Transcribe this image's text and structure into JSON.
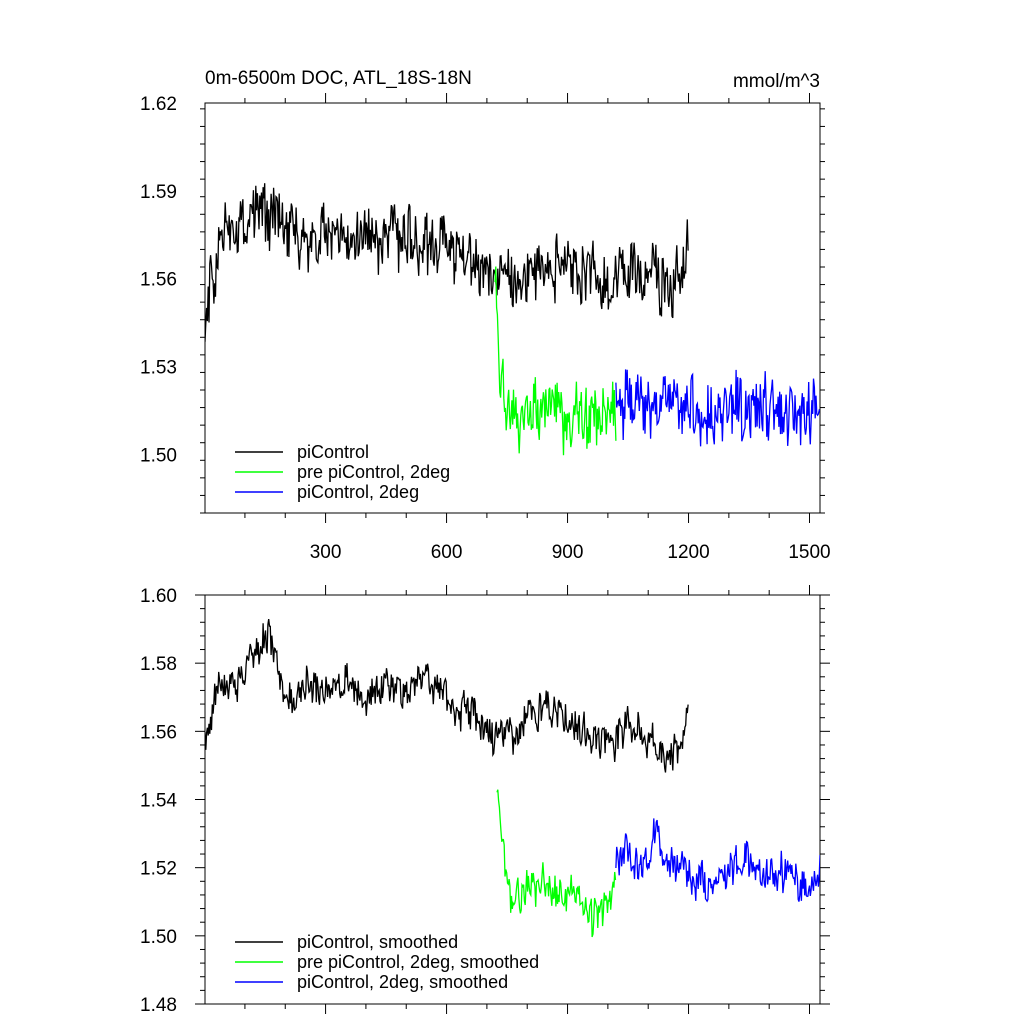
{
  "figure": {
    "title_left": "0m-6500m DOC, ATL_18S-18N",
    "title_right": "mmol/m^3"
  },
  "chart_data": [
    {
      "type": "line",
      "title": "0m-6500m DOC, ATL_18S-18N",
      "units": "mmol/m^3",
      "xlim": [
        1,
        1526
      ],
      "ylim": [
        1.48,
        1.62
      ],
      "x_ticks": [
        300,
        600,
        900,
        1200,
        1500
      ],
      "x_tick_labels": [
        "300",
        "600",
        "900",
        "1200",
        "1500"
      ],
      "y_ticks": [
        1.5,
        1.53,
        1.56,
        1.59,
        1.62
      ],
      "y_tick_labels": [
        "1.50",
        "1.53",
        "1.56",
        "1.59",
        "1.62"
      ],
      "grid": false,
      "legend_position": "bottom-left",
      "series": [
        {
          "name": "piControl",
          "color": "#000000",
          "x": [
            1,
            50,
            100,
            150,
            200,
            250,
            300,
            350,
            400,
            450,
            500,
            550,
            600,
            650,
            700,
            750,
            800,
            850,
            900,
            950,
            1000,
            1050,
            1100,
            1150,
            1200
          ],
          "y": [
            1.55,
            1.575,
            1.58,
            1.582,
            1.575,
            1.572,
            1.574,
            1.575,
            1.572,
            1.575,
            1.572,
            1.573,
            1.571,
            1.567,
            1.563,
            1.56,
            1.564,
            1.565,
            1.563,
            1.562,
            1.558,
            1.562,
            1.56,
            1.558,
            1.57
          ]
        },
        {
          "name": "pre piControl, 2deg",
          "color": "#00ff00",
          "x": [
            720,
            730,
            750,
            780,
            820,
            860,
            900,
            940,
            980,
            1020
          ],
          "y": [
            1.555,
            1.535,
            1.515,
            1.513,
            1.518,
            1.515,
            1.512,
            1.514,
            1.513,
            1.515
          ]
        },
        {
          "name": "piControl, 2deg",
          "color": "#0000ff",
          "x": [
            1020,
            1060,
            1100,
            1150,
            1200,
            1250,
            1300,
            1350,
            1400,
            1450,
            1500,
            1526
          ],
          "y": [
            1.515,
            1.518,
            1.516,
            1.52,
            1.517,
            1.513,
            1.515,
            1.516,
            1.515,
            1.514,
            1.513,
            1.515
          ]
        }
      ],
      "legend": [
        {
          "label": "piControl",
          "color": "#000000"
        },
        {
          "label": "pre piControl, 2deg",
          "color": "#00ff00"
        },
        {
          "label": "piControl, 2deg",
          "color": "#0000ff"
        }
      ]
    },
    {
      "type": "line",
      "xlim": [
        1,
        1526
      ],
      "ylim": [
        1.48,
        1.6
      ],
      "x_ticks": [
        300,
        600,
        900,
        1200,
        1500
      ],
      "y_ticks": [
        1.48,
        1.5,
        1.52,
        1.54,
        1.56,
        1.58,
        1.6
      ],
      "y_tick_labels": [
        "1.48",
        "1.50",
        "1.52",
        "1.54",
        "1.56",
        "1.58",
        "1.60"
      ],
      "grid": false,
      "legend_position": "bottom-left",
      "series": [
        {
          "name": "piControl, smoothed",
          "color": "#000000",
          "x": [
            1,
            40,
            80,
            120,
            160,
            200,
            250,
            300,
            350,
            400,
            450,
            500,
            550,
            600,
            650,
            700,
            750,
            800,
            850,
            900,
            950,
            1000,
            1050,
            1100,
            1150,
            1200
          ],
          "y": [
            1.558,
            1.575,
            1.572,
            1.582,
            1.588,
            1.568,
            1.573,
            1.572,
            1.576,
            1.57,
            1.573,
            1.572,
            1.574,
            1.568,
            1.566,
            1.56,
            1.557,
            1.564,
            1.567,
            1.562,
            1.558,
            1.556,
            1.561,
            1.558,
            1.55,
            1.566
          ]
        },
        {
          "name": "pre piControl, 2deg, smoothed",
          "color": "#00ff00",
          "x": [
            725,
            740,
            760,
            800,
            840,
            880,
            920,
            960,
            1000,
            1020
          ],
          "y": [
            1.54,
            1.525,
            1.51,
            1.514,
            1.516,
            1.512,
            1.514,
            1.505,
            1.51,
            1.52
          ]
        },
        {
          "name": "piControl, 2deg, smoothed",
          "color": "#0000ff",
          "x": [
            1020,
            1040,
            1080,
            1120,
            1160,
            1200,
            1250,
            1300,
            1350,
            1400,
            1450,
            1500,
            1526
          ],
          "y": [
            1.52,
            1.526,
            1.52,
            1.53,
            1.52,
            1.518,
            1.515,
            1.52,
            1.522,
            1.517,
            1.519,
            1.512,
            1.518
          ]
        }
      ],
      "legend": [
        {
          "label": "piControl, smoothed",
          "color": "#000000"
        },
        {
          "label": "pre piControl, 2deg, smoothed",
          "color": "#00ff00"
        },
        {
          "label": "piControl, 2deg, smoothed",
          "color": "#0000ff"
        }
      ]
    }
  ]
}
